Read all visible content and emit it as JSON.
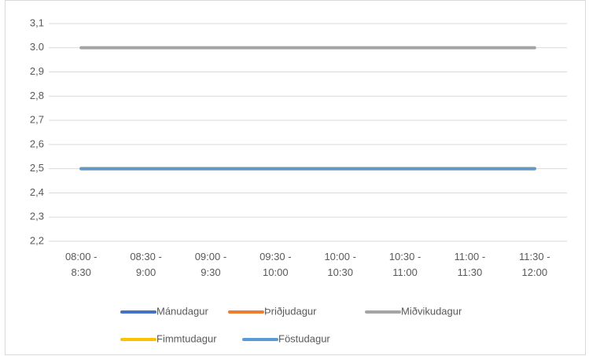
{
  "chart_data": {
    "type": "line",
    "categories": [
      [
        "08:00 -",
        "8:30"
      ],
      [
        "08:30 -",
        "9:00"
      ],
      [
        "09:00 -",
        "9:30"
      ],
      [
        "09:30 -",
        "10:00"
      ],
      [
        "10:00 -",
        "10:30"
      ],
      [
        "10:30 -",
        "11:00"
      ],
      [
        "11:00 -",
        "11:30"
      ],
      [
        "11:30 -",
        "12:00"
      ]
    ],
    "series": [
      {
        "name": "Mánudagur",
        "color": "#4472c4",
        "values": [
          2.5,
          2.5,
          2.5,
          2.5,
          2.5,
          2.5,
          2.5,
          2.5
        ]
      },
      {
        "name": "Þriðjudagur",
        "color": "#ed7d31",
        "values": [
          2.5,
          2.5,
          2.5,
          2.5,
          2.5,
          2.5,
          2.5,
          2.5
        ]
      },
      {
        "name": "Miðvikudagur",
        "color": "#a5a5a5",
        "values": [
          3,
          3,
          3,
          3,
          3,
          3,
          3,
          3
        ]
      },
      {
        "name": "Fimmtudagur",
        "color": "#ffc000",
        "values": [
          2.5,
          2.5,
          2.5,
          2.5,
          2.5,
          2.5,
          2.5,
          2.5
        ]
      },
      {
        "name": "Föstudagur",
        "color": "#5b9bd5",
        "values": [
          2.5,
          2.5,
          2.5,
          2.5,
          2.5,
          2.5,
          2.5,
          2.5
        ]
      }
    ],
    "ylim": [
      2.2,
      3.1
    ],
    "yticks": [
      {
        "value": 2.2,
        "label": "2,2"
      },
      {
        "value": 2.3,
        "label": "2,3"
      },
      {
        "value": 2.4,
        "label": "2,4"
      },
      {
        "value": 2.5,
        "label": "2,5"
      },
      {
        "value": 2.6,
        "label": "2,6"
      },
      {
        "value": 2.7,
        "label": "2,7"
      },
      {
        "value": 2.8,
        "label": "2,8"
      },
      {
        "value": 2.9,
        "label": "2,9"
      },
      {
        "value": 3,
        "label": "3.0"
      },
      {
        "value": 3.1,
        "label": "3,1"
      }
    ],
    "grid": true,
    "legend": "bottom"
  }
}
